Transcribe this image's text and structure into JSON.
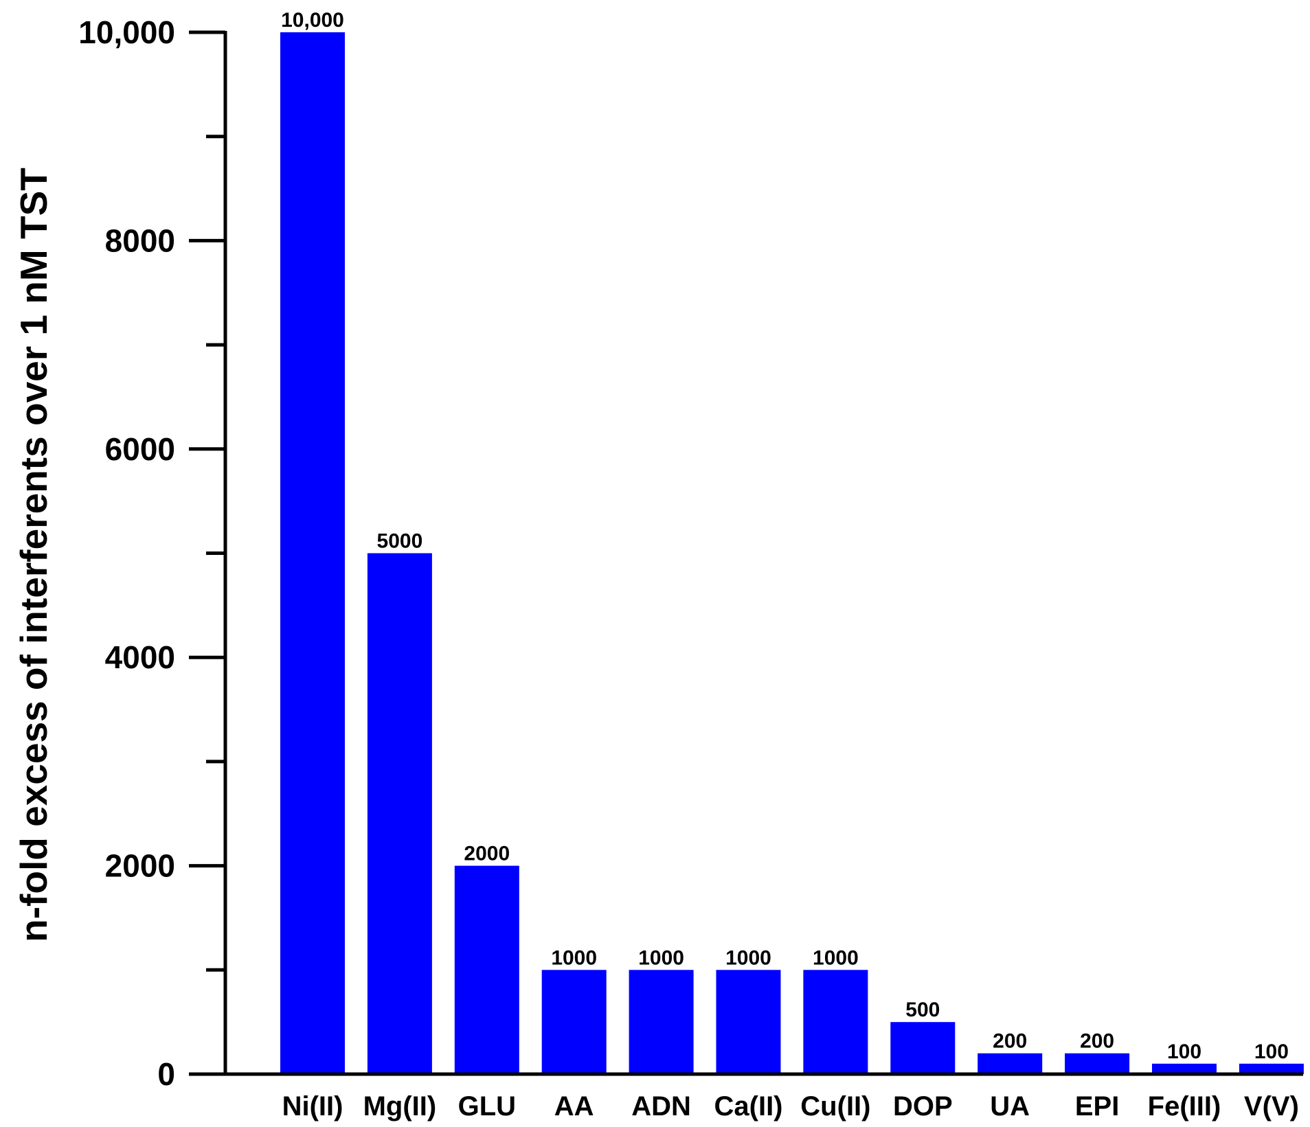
{
  "chart_data": {
    "type": "bar",
    "title": "",
    "xlabel": "",
    "ylabel": "n-fold excess of interferents over 1 nM TST",
    "categories": [
      "Ni(II)",
      "Mg(II)",
      "GLU",
      "AA",
      "ADN",
      "Ca(II)",
      "Cu(II)",
      "DOP",
      "UA",
      "EPI",
      "Fe(III)",
      "V(V)"
    ],
    "values": [
      10000,
      5000,
      2000,
      1000,
      1000,
      1000,
      1000,
      500,
      200,
      200,
      100,
      100
    ],
    "data_labels": [
      "10,000",
      "5000",
      "2000",
      "1000",
      "1000",
      "1000",
      "1000",
      "500",
      "200",
      "200",
      "100",
      "100"
    ],
    "ylim": [
      0,
      10000
    ],
    "yticks": [
      0,
      2000,
      4000,
      6000,
      8000,
      10000
    ],
    "ytick_labels": [
      "0",
      "2000",
      "4000",
      "6000",
      "8000",
      "10,000"
    ],
    "minor_ticks": [
      1000,
      3000,
      5000,
      7000,
      9000
    ],
    "grid": false,
    "legend": "none",
    "bar_color": "#0000ff",
    "axis_color": "#000000"
  }
}
